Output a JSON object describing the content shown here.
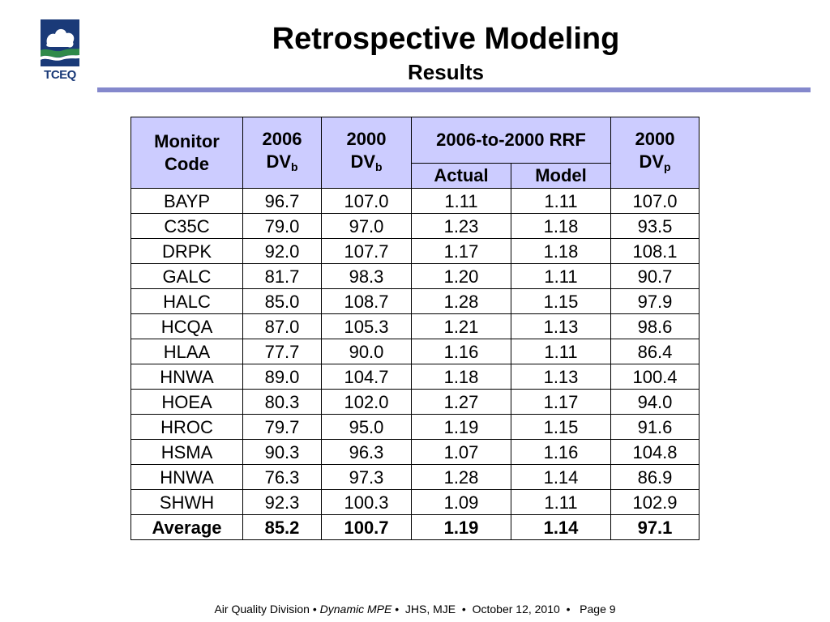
{
  "logo": {
    "text": "TCEQ"
  },
  "header": {
    "title": "Retrospective Modeling",
    "subtitle": "Results"
  },
  "table": {
    "headers": {
      "monitor_line1": "Monitor",
      "monitor_line2": "Code",
      "dv2006_year": "2006",
      "dv2006_main": "DV",
      "dv2006_sub": "b",
      "dv2000_year": "2000",
      "dv2000_main": "DV",
      "dv2000_sub": "b",
      "rrf": "2006-to-2000 RRF",
      "rrf_actual": "Actual",
      "rrf_model": "Model",
      "dvp_year": "2000",
      "dvp_main": "DV",
      "dvp_sub": "p"
    },
    "rows": [
      {
        "code": "BAYP",
        "dv2006": "96.7",
        "dv2000": "107.0",
        "actual": "1.11",
        "model": "1.11",
        "dvp": "107.0"
      },
      {
        "code": "C35C",
        "dv2006": "79.0",
        "dv2000": "97.0",
        "actual": "1.23",
        "model": "1.18",
        "dvp": "93.5"
      },
      {
        "code": "DRPK",
        "dv2006": "92.0",
        "dv2000": "107.7",
        "actual": "1.17",
        "model": "1.18",
        "dvp": "108.1"
      },
      {
        "code": "GALC",
        "dv2006": "81.7",
        "dv2000": "98.3",
        "actual": "1.20",
        "model": "1.11",
        "dvp": "90.7"
      },
      {
        "code": "HALC",
        "dv2006": "85.0",
        "dv2000": "108.7",
        "actual": "1.28",
        "model": "1.15",
        "dvp": "97.9"
      },
      {
        "code": "HCQA",
        "dv2006": "87.0",
        "dv2000": "105.3",
        "actual": "1.21",
        "model": "1.13",
        "dvp": "98.6"
      },
      {
        "code": "HLAA",
        "dv2006": "77.7",
        "dv2000": "90.0",
        "actual": "1.16",
        "model": "1.11",
        "dvp": "86.4"
      },
      {
        "code": "HNWA",
        "dv2006": "89.0",
        "dv2000": "104.7",
        "actual": "1.18",
        "model": "1.13",
        "dvp": "100.4"
      },
      {
        "code": "HOEA",
        "dv2006": "80.3",
        "dv2000": "102.0",
        "actual": "1.27",
        "model": "1.17",
        "dvp": "94.0"
      },
      {
        "code": "HROC",
        "dv2006": "79.7",
        "dv2000": "95.0",
        "actual": "1.19",
        "model": "1.15",
        "dvp": "91.6"
      },
      {
        "code": "HSMA",
        "dv2006": "90.3",
        "dv2000": "96.3",
        "actual": "1.07",
        "model": "1.16",
        "dvp": "104.8"
      },
      {
        "code": "HNWA",
        "dv2006": "76.3",
        "dv2000": "97.3",
        "actual": "1.28",
        "model": "1.14",
        "dvp": "86.9"
      },
      {
        "code": "SHWH",
        "dv2006": "92.3",
        "dv2000": "100.3",
        "actual": "1.09",
        "model": "1.11",
        "dvp": "102.9"
      }
    ],
    "average": {
      "code": "Average",
      "dv2006": "85.2",
      "dv2000": "100.7",
      "actual": "1.19",
      "model": "1.14",
      "dvp": "97.1"
    }
  },
  "footer": {
    "division": "Air Quality Division",
    "program": "Dynamic MPE",
    "authors": "JHS, MJE",
    "date": "October 12, 2010",
    "page": "Page 9",
    "bullet": "•"
  },
  "colors": {
    "header_fill": "#ccccff",
    "rule": "#8488cc",
    "logo_blue": "#1a3a78",
    "logo_green": "#2f8a4a"
  },
  "icons": {
    "logo": "tceq-logo-icon"
  }
}
